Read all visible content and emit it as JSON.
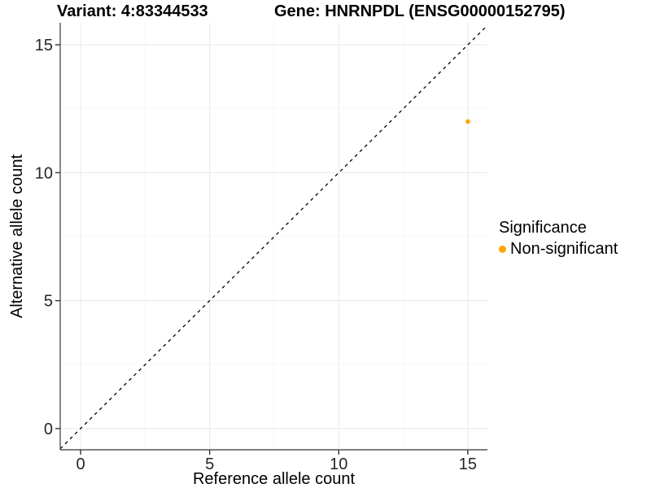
{
  "titles": {
    "variant": "Variant: 4:83344533",
    "gene": "Gene: HNRNPDL (ENSG00000152795)"
  },
  "legend": {
    "title": "Significance",
    "items": [
      {
        "label": "Non-significant",
        "color": "#FFA500"
      }
    ]
  },
  "chart_data": {
    "type": "scatter",
    "title": "Variant: 4:83344533   Gene: HNRNPDL (ENSG00000152795)",
    "xlabel": "Reference allele count",
    "ylabel": "Alternative allele count",
    "xlim": [
      -0.79,
      15.76
    ],
    "ylim": [
      -0.83,
      15.86
    ],
    "x_ticks": [
      0,
      5,
      10,
      15
    ],
    "y_ticks": [
      0,
      5,
      10,
      15
    ],
    "x_minor_ticks": [
      2.5,
      7.5,
      12.5
    ],
    "y_minor_ticks": [
      2.5,
      7.5,
      12.5
    ],
    "grid": {
      "major_color": "#EBEBEB",
      "minor_color": "#F6F6F6",
      "on": true
    },
    "identity_line": {
      "from": [
        -0.79,
        -0.79
      ],
      "to": [
        15.76,
        15.76
      ],
      "style": "dashed",
      "color": "#000000"
    },
    "series": [
      {
        "name": "Non-significant",
        "color": "#FFA500",
        "points": [
          {
            "x": 15,
            "y": 12
          }
        ]
      }
    ],
    "legend_position": "right",
    "colors": {
      "axis_line": "#555555",
      "tick": "#333333",
      "tick_label": "#262626",
      "axis_title": "#000000",
      "background": "#FFFFFF"
    }
  }
}
